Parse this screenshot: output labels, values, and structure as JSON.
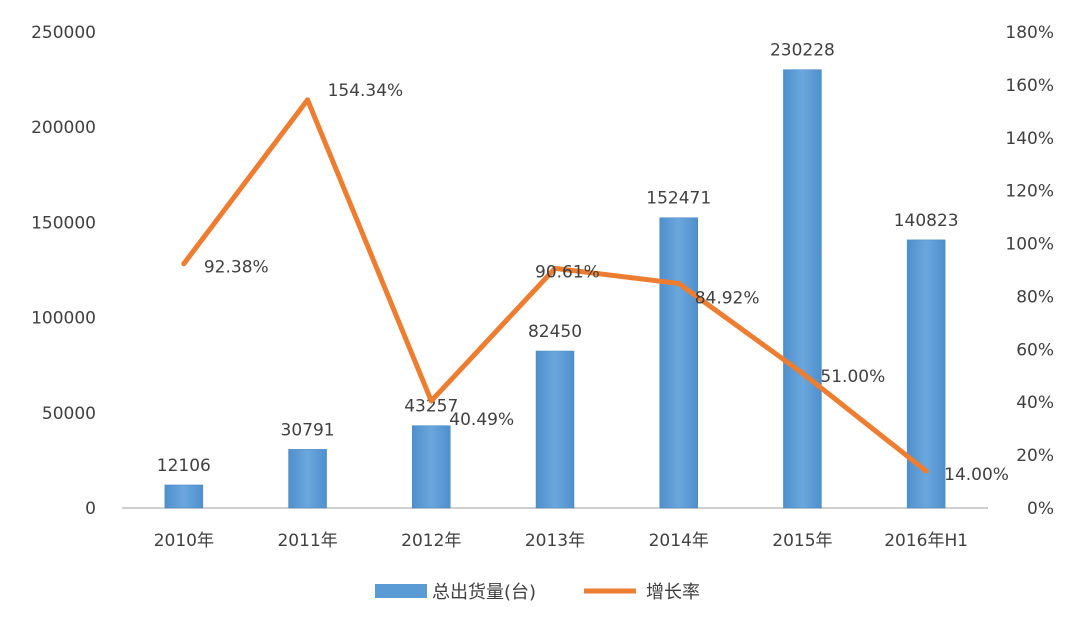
{
  "chart_data": {
    "type": "bar",
    "categories": [
      "2010年",
      "2011年",
      "2012年",
      "2013年",
      "2014年",
      "2015年",
      "2016年H1"
    ],
    "series": [
      {
        "name": "总出货量(台)",
        "type": "bar",
        "axis": "left",
        "values": [
          12106,
          30791,
          43257,
          82450,
          152471,
          230228,
          140823
        ],
        "labels": [
          "12106",
          "30791",
          "43257",
          "82450",
          "152471",
          "230228",
          "140823"
        ]
      },
      {
        "name": "增长率",
        "type": "line",
        "axis": "right",
        "values": [
          92.38,
          154.34,
          40.49,
          90.61,
          84.92,
          51.0,
          14.0
        ],
        "labels": [
          "92.38%",
          "154.34%",
          "40.49%",
          "90.61%",
          "84.92%",
          "51.00%",
          "14.00%"
        ]
      }
    ],
    "y_left": {
      "min": 0,
      "max": 250000,
      "ticks": [
        "0",
        "50000",
        "100000",
        "150000",
        "200000",
        "250000"
      ]
    },
    "y_right": {
      "min": 0,
      "max": 180,
      "ticks": [
        "0%",
        "20%",
        "40%",
        "60%",
        "80%",
        "100%",
        "120%",
        "140%",
        "160%",
        "180%"
      ]
    },
    "grid": false,
    "legend_position": "bottom",
    "colors": {
      "bar": "#5B9BD5",
      "line": "#ED7D31",
      "text": "#404040",
      "axis": "#BFBFBF"
    }
  }
}
